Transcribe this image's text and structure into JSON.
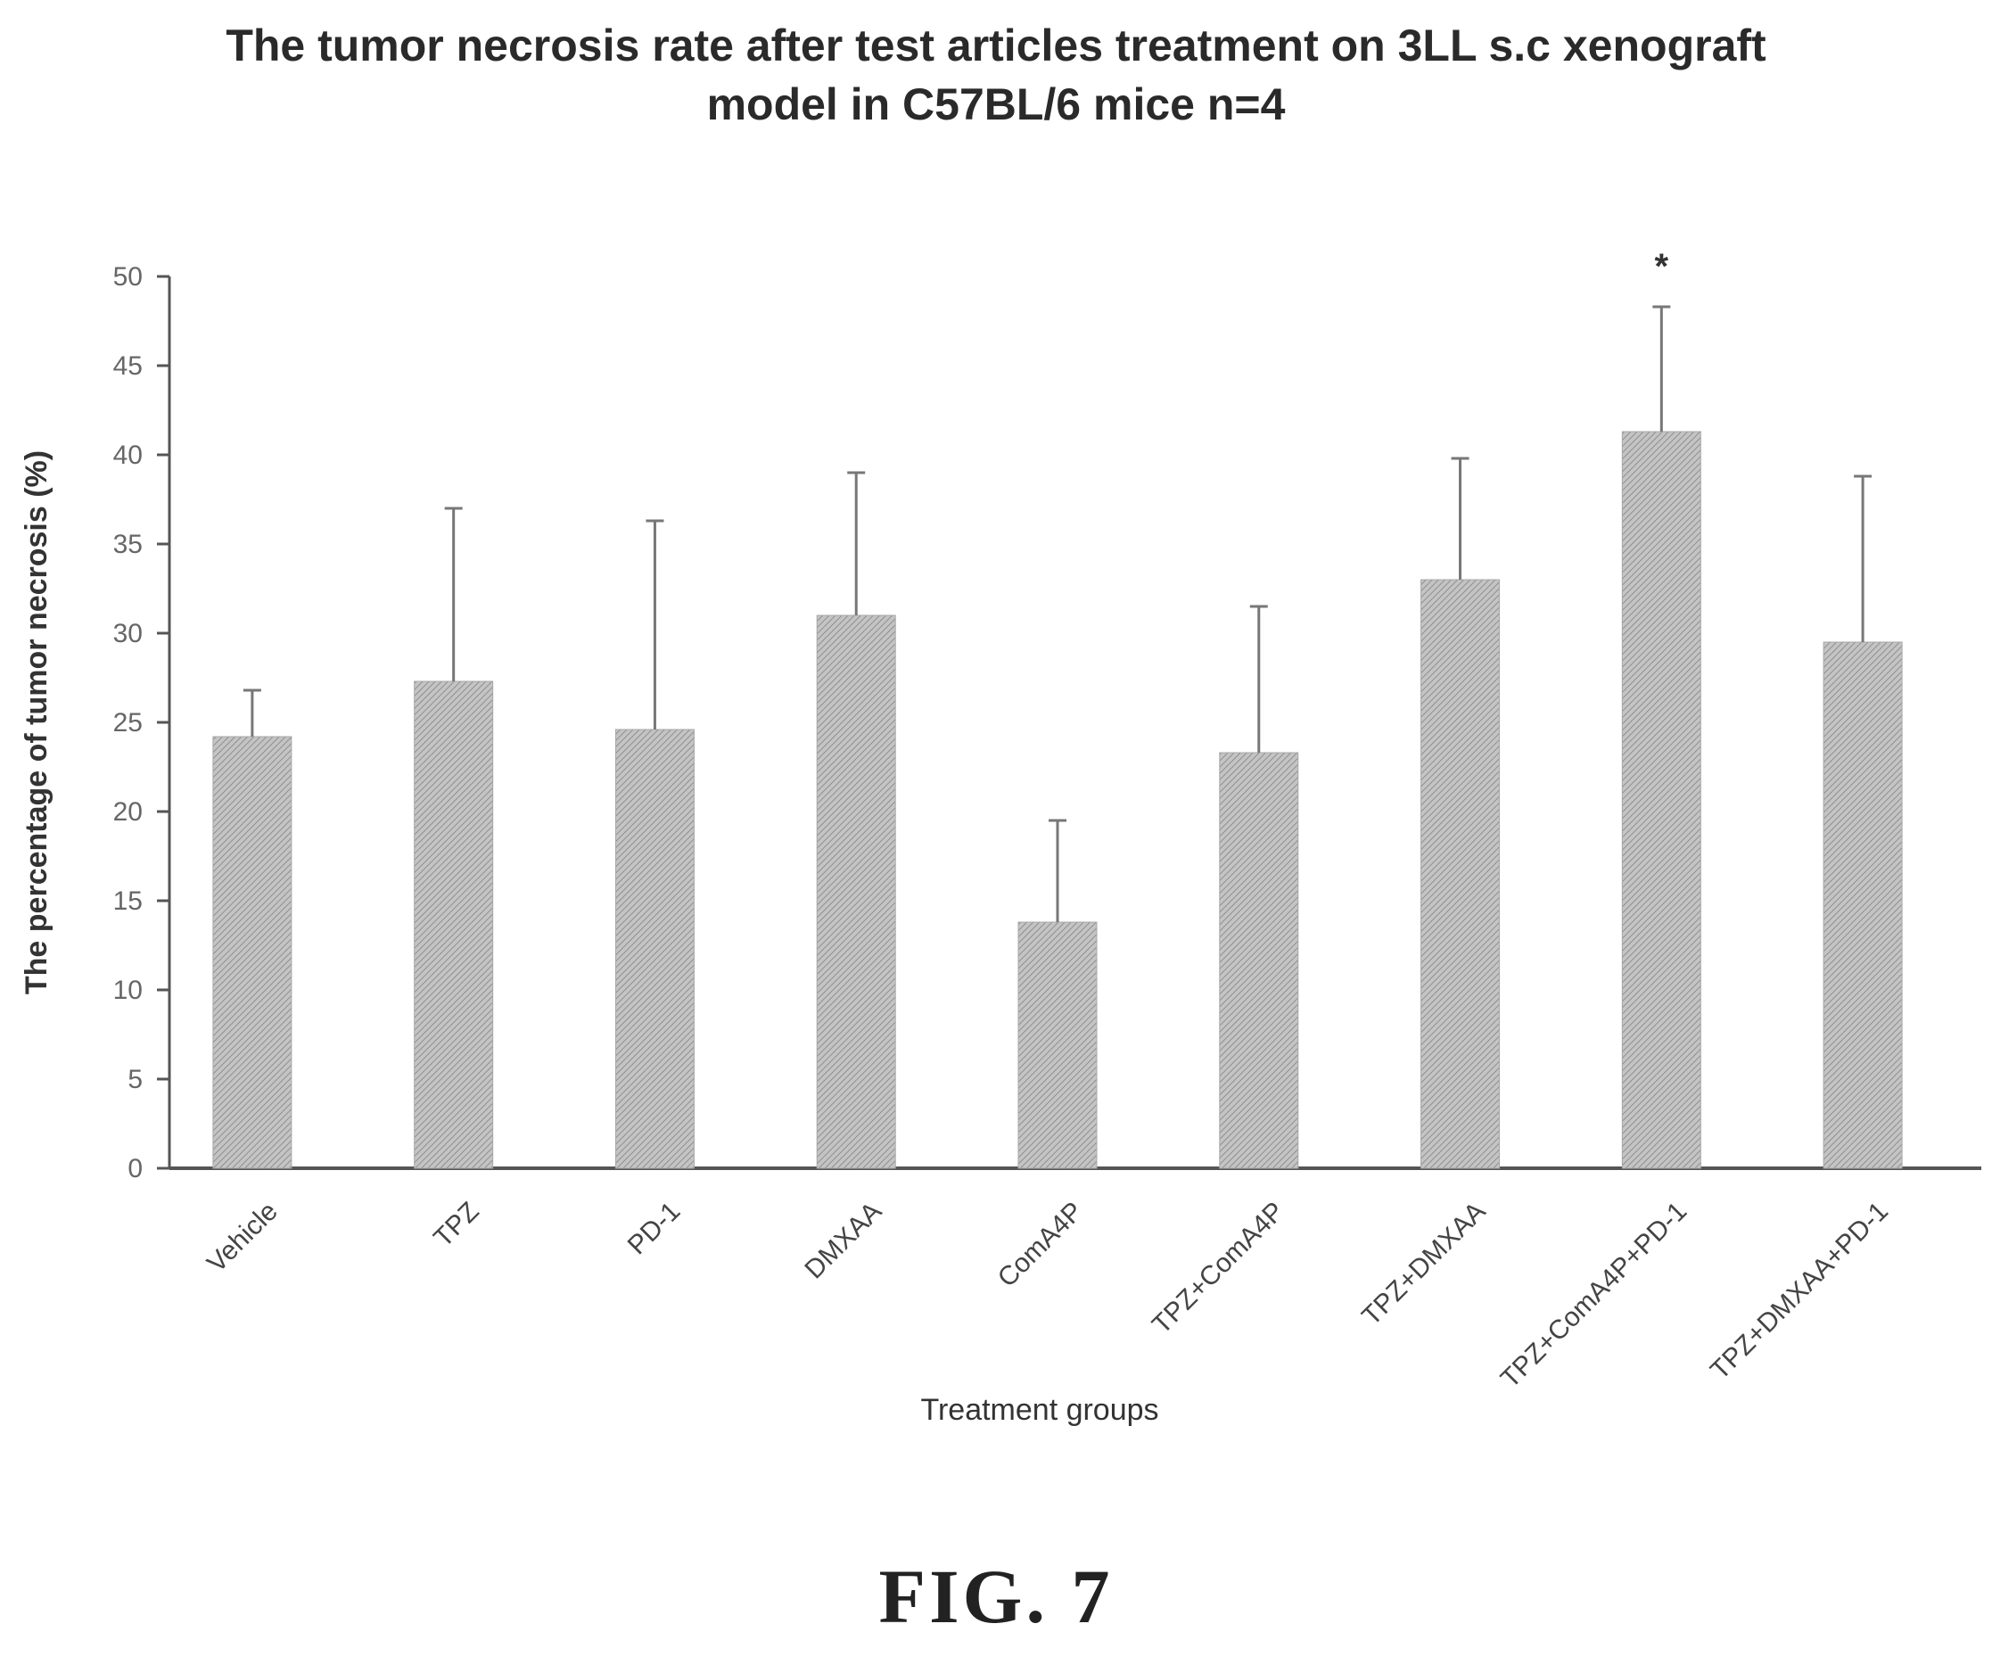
{
  "chart_data": {
    "type": "bar",
    "title_line1": "The tumor necrosis rate after test articles treatment on 3LL s.c xenograft",
    "title_line2": "model in C57BL/6 mice  n=4",
    "xlabel": "Treatment groups",
    "ylabel": "The percentage of tumor necrosis (%)",
    "ylim": [
      0,
      50
    ],
    "yticks": [
      "0",
      "5",
      "10",
      "15",
      "20",
      "25",
      "30",
      "35",
      "40",
      "45",
      "50"
    ],
    "categories": [
      "Vehicle",
      "TPZ",
      "PD-1",
      "DMXAA",
      "ComA4P",
      "TPZ+ComA4P",
      "TPZ+DMXAA",
      "TPZ+ComA4P+PD-1",
      "TPZ+DMXAA+PD-1"
    ],
    "values": [
      24.2,
      27.3,
      24.6,
      31.0,
      13.8,
      23.3,
      33.0,
      41.3,
      29.5
    ],
    "error_upper": [
      26.8,
      37.0,
      36.3,
      39.0,
      19.5,
      31.5,
      39.8,
      48.3,
      38.8
    ],
    "significance": [
      "",
      "",
      "",
      "",
      "",
      "",
      "",
      "*",
      ""
    ],
    "grid": false,
    "bar_color": "#b5b5b5"
  },
  "figure_label": "FIG. 7"
}
